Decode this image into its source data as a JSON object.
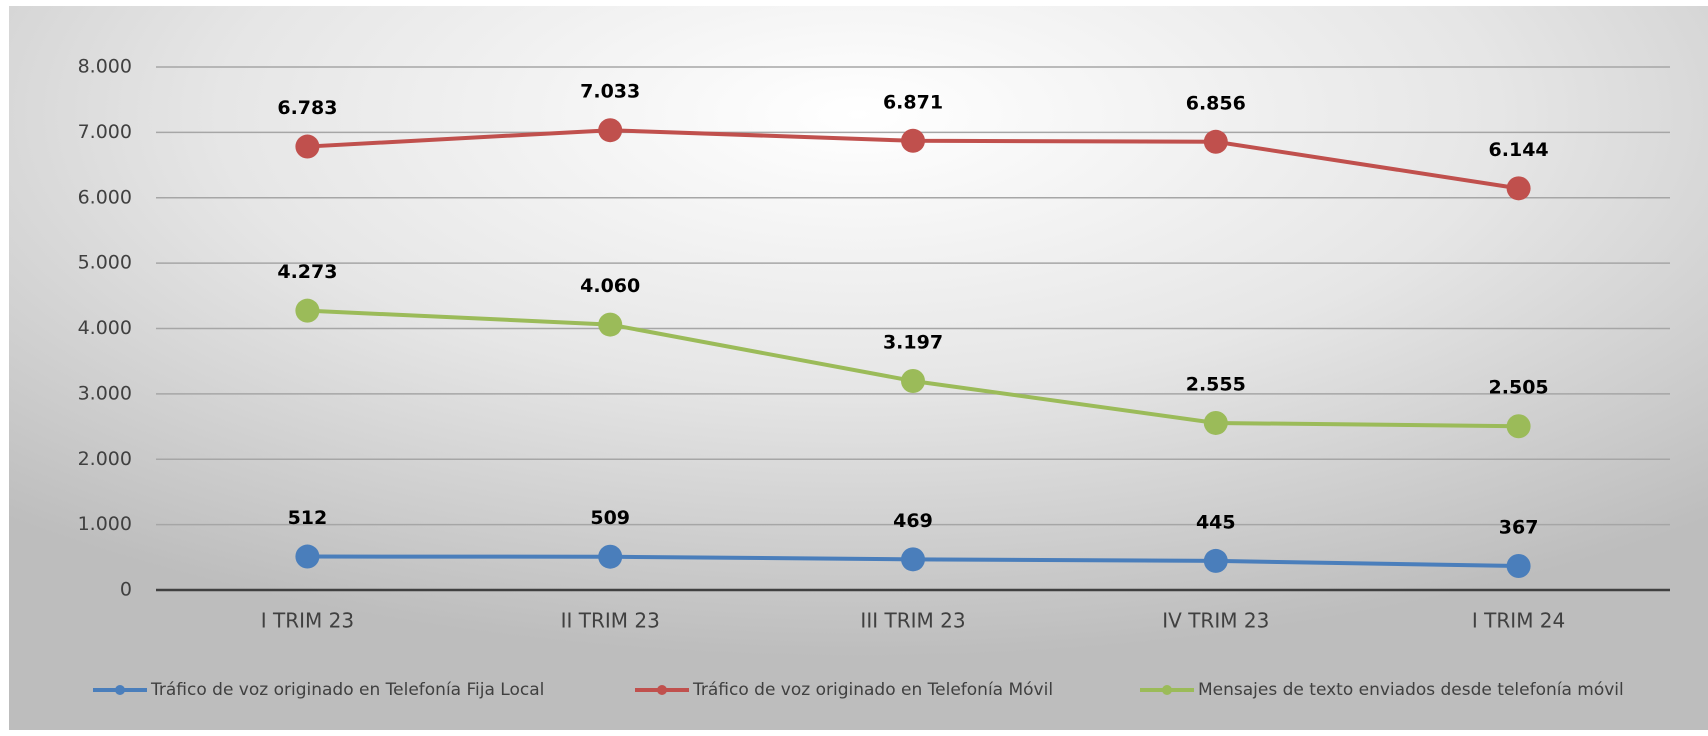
{
  "chart_data": {
    "type": "line",
    "categories": [
      "I TRIM 23",
      "II TRIM 23",
      "III TRIM 23",
      "IV TRIM 23",
      "I TRIM 24"
    ],
    "series": [
      {
        "name": "Tráfico de voz originado en Telefonía Fija Local",
        "color": "#4a7ebb",
        "values": [
          512,
          509,
          469,
          445,
          367
        ],
        "value_labels": [
          "512",
          "509",
          "469",
          "445",
          "367"
        ]
      },
      {
        "name": "Tráfico de voz originado en Telefonía Móvil",
        "color": "#c0504d",
        "values": [
          6783,
          7033,
          6871,
          6856,
          6144
        ],
        "value_labels": [
          "6.783",
          "7.033",
          "6.871",
          "6.856",
          "6.144"
        ]
      },
      {
        "name": "Mensajes de texto enviados desde telefonía móvil",
        "color": "#9bbb59",
        "values": [
          4273,
          4060,
          3197,
          2555,
          2505
        ],
        "value_labels": [
          "4.273",
          "4.060",
          "3.197",
          "2.555",
          "2.505"
        ]
      }
    ],
    "ylim": [
      0,
      8000
    ],
    "yticks": [
      0,
      {
        "value": 1000,
        "label": "1.000"
      },
      {
        "value": 2000,
        "label": "2.000"
      },
      {
        "value": 3000,
        "label": "3.000"
      },
      {
        "value": 4000,
        "label": "4.000"
      },
      {
        "value": 5000,
        "label": "5.000"
      },
      {
        "value": 6000,
        "label": "6.000"
      },
      {
        "value": 7000,
        "label": "7.000"
      },
      {
        "value": 8000,
        "label": "8.000"
      }
    ],
    "grid": true,
    "legend": "bottom"
  }
}
